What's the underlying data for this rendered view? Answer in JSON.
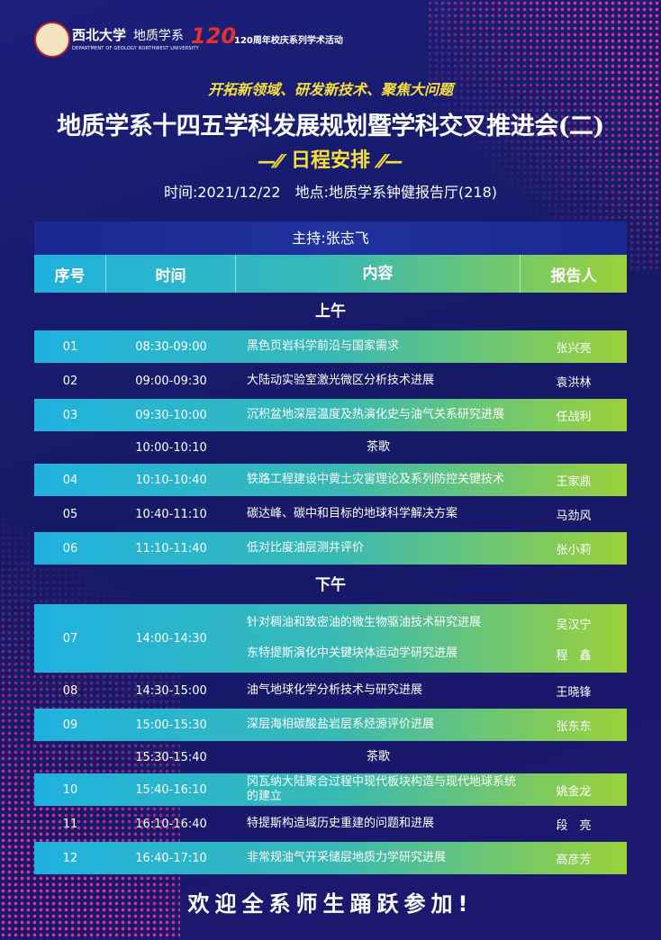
{
  "header": {
    "university": "西北大学",
    "department": "地质学系",
    "department_en": "DEPARTMENT OF GEOLOGY NORTHWEST UNIVERSITY",
    "anniversary_logo": "120",
    "anniversary": "120周年校庆系列学术活动"
  },
  "slogan": "开拓新领域、研发新技术、聚焦大问题",
  "title": "地质学系十四五学科发展规划暨学科交叉推进会(二)",
  "subtitle": "日程安排",
  "time": "时间:2021/12/22",
  "place": "地点:地质学系钟健报告厅(218)",
  "host": "主持:张志飞",
  "table": {
    "columns": [
      "序号",
      "时间",
      "内容",
      "报告人"
    ],
    "sections": [
      {
        "name": "上午",
        "rows": [
          {
            "no": "01",
            "time": "08:30-09:00",
            "talks": [
              {
                "content": "黑色页岩科学前沿与国家需求",
                "speaker": "张兴亮"
              }
            ],
            "highlight": true
          },
          {
            "no": "02",
            "time": "09:00-09:30",
            "talks": [
              {
                "content": "大陆动实验室激光微区分析技术进展",
                "speaker": "袁洪林"
              }
            ],
            "highlight": false
          },
          {
            "no": "03",
            "time": "09:30-10:00",
            "talks": [
              {
                "content": "沉积盆地深层温度及热演化史与油气关系研究进展",
                "speaker": "任战利"
              }
            ],
            "highlight": true
          },
          {
            "time": "10:00-10:10",
            "break": "茶歌"
          },
          {
            "no": "04",
            "time": "10:10-10:40",
            "talks": [
              {
                "content": "铁路工程建设中黄土灾害理论及系列防控关键技术",
                "speaker": "王家鼎"
              }
            ],
            "highlight": true
          },
          {
            "no": "05",
            "time": "10:40-11:10",
            "talks": [
              {
                "content": "碳达峰、碳中和目标的地球科学解决方案",
                "speaker": "马劲风"
              }
            ],
            "highlight": false
          },
          {
            "no": "06",
            "time": "11:10-11:40",
            "talks": [
              {
                "content": "低对比度油层测井评价",
                "speaker": "张小莉"
              }
            ],
            "highlight": true
          }
        ]
      },
      {
        "name": "下午",
        "rows": [
          {
            "no": "07",
            "time": "14:00-14:30",
            "talks": [
              {
                "content": "针对稠油和致密油的微生物驱油技术研究进展",
                "speaker": "吴汉宁"
              },
              {
                "content": "东特提斯演化中关键块体运动学研究进展",
                "speaker": "程　鑫"
              }
            ],
            "highlight": true
          },
          {
            "no": "08",
            "time": "14:30-15:00",
            "talks": [
              {
                "content": "油气地球化学分析技术与研究进展",
                "speaker": "王晓锋"
              }
            ],
            "highlight": false
          },
          {
            "no": "09",
            "time": "15:00-15:30",
            "talks": [
              {
                "content": "深层海相碳酸盐岩层系烃源评价进展",
                "speaker": "张东东"
              }
            ],
            "highlight": true
          },
          {
            "time": "15:30-15:40",
            "break": "茶歌"
          },
          {
            "no": "10",
            "time": "15:40-16:10",
            "talks": [
              {
                "content": "冈瓦纳大陆聚合过程中现代板块构造与现代地球系统的建立",
                "speaker": "姚金龙"
              }
            ],
            "highlight": true
          },
          {
            "no": "11",
            "time": "16:10-16:40",
            "talks": [
              {
                "content": "特提斯构造域历史重建的问题和进展",
                "speaker": "段　亮"
              }
            ],
            "highlight": false
          },
          {
            "no": "12",
            "time": "16:40-17:10",
            "talks": [
              {
                "content": "非常规油气开采储层地质力学研究进展",
                "speaker": "高彦芳"
              }
            ],
            "highlight": true
          }
        ]
      }
    ]
  },
  "footer": "欢迎全系师生踊跃参加!"
}
